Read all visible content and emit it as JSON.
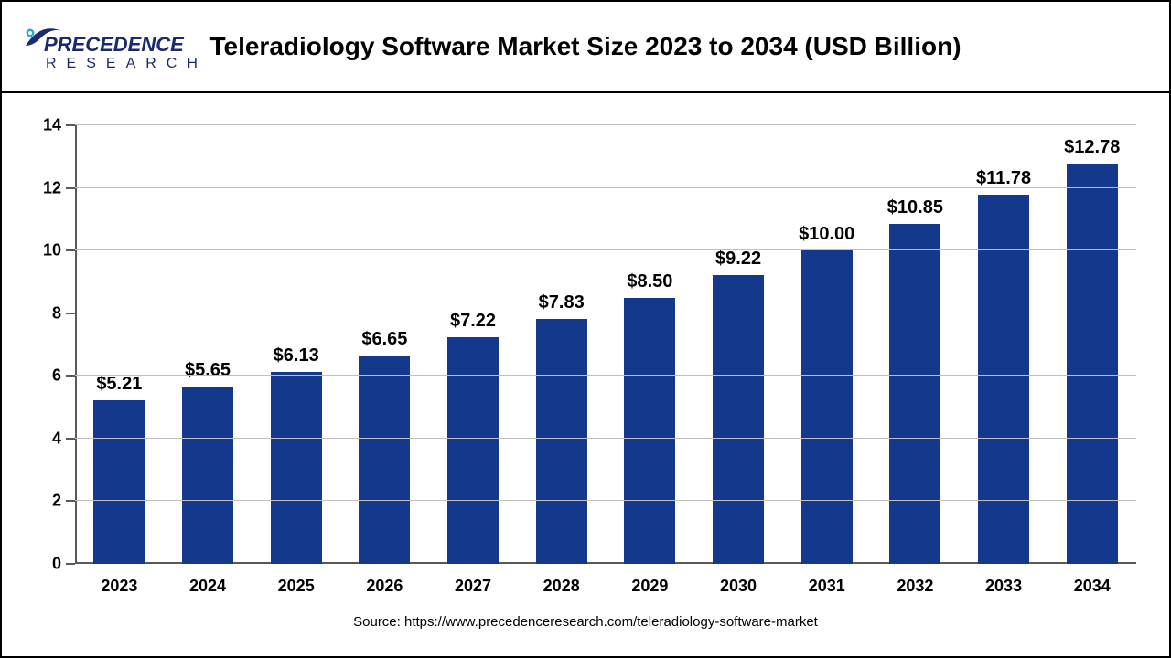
{
  "brand": {
    "name": "PRECEDENCE",
    "subname": "RESEARCH",
    "text_color": "#1a2a6c",
    "accent_color": "#2aa8e0"
  },
  "chart": {
    "type": "bar",
    "title": "Teleradiology Software Market Size 2023 to 2034 (USD Billion)",
    "title_fontsize": 28,
    "categories": [
      "2023",
      "2024",
      "2025",
      "2026",
      "2027",
      "2028",
      "2029",
      "2030",
      "2031",
      "2032",
      "2033",
      "2034"
    ],
    "values": [
      5.21,
      5.65,
      6.13,
      6.65,
      7.22,
      7.83,
      8.5,
      9.22,
      10.0,
      10.85,
      11.78,
      12.78
    ],
    "value_labels": [
      "$5.21",
      "$5.65",
      "$6.13",
      "$6.65",
      "$7.22",
      "$7.83",
      "$8.50",
      "$9.22",
      "$10.00",
      "$10.85",
      "$11.78",
      "$12.78"
    ],
    "bar_color": "#13388c",
    "ylim": [
      0,
      14
    ],
    "ytick_step": 2,
    "yticks": [
      "0",
      "2",
      "4",
      "6",
      "8",
      "10",
      "12",
      "14"
    ],
    "grid_color": "#bfbfbf",
    "axis_color": "#595959",
    "background_color": "#ffffff",
    "label_fontsize": 18,
    "value_label_fontsize": 20,
    "bar_width_ratio": 0.58
  },
  "source": {
    "label": "Source: https://www.precedenceresearch.com/teleradiology-software-market"
  }
}
